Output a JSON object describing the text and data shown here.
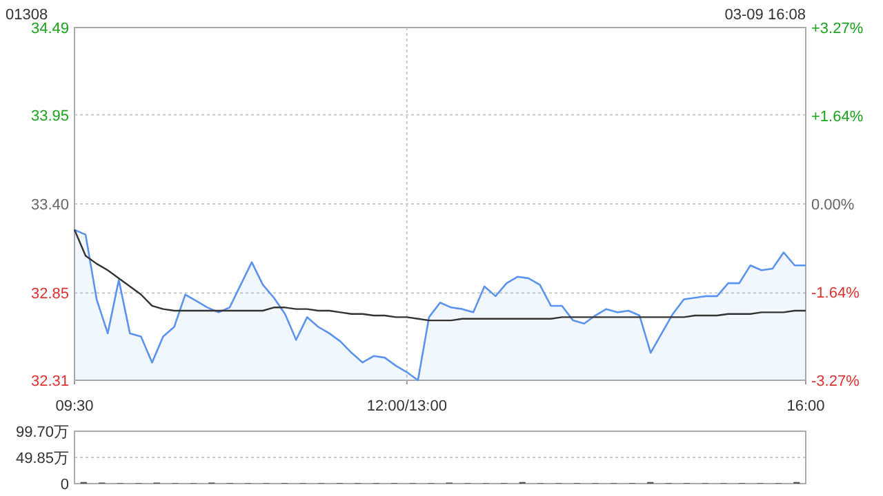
{
  "chart_data": [
    {
      "type": "line",
      "title": "01308",
      "annotations": [
        "03-09 16:08"
      ],
      "categories": [
        "09:30",
        null,
        null,
        null,
        null,
        null,
        null,
        null,
        null,
        null,
        null,
        null,
        null,
        null,
        null,
        null,
        null,
        null,
        null,
        null,
        null,
        null,
        null,
        null,
        null,
        null,
        null,
        null,
        null,
        null,
        "12:00/13:00",
        null,
        null,
        null,
        null,
        null,
        null,
        null,
        null,
        null,
        null,
        null,
        null,
        null,
        null,
        null,
        null,
        null,
        null,
        null,
        null,
        null,
        null,
        null,
        null,
        null,
        null,
        null,
        null,
        null,
        null,
        null,
        null,
        null,
        null,
        null,
        "16:00"
      ],
      "ylim": [
        32.31,
        34.49
      ],
      "yticks": [
        32.31,
        32.85,
        {
          "value": 33.4,
          "label": "33.40"
        },
        33.95,
        34.49
      ],
      "y2lim": [
        -3.27,
        3.27
      ],
      "y2ticks": [
        {
          "value": -3.27,
          "label": "-3.27%"
        },
        {
          "value": -1.64,
          "label": "-1.64%"
        },
        {
          "value": 0,
          "label": "0.00%"
        },
        {
          "value": 1.64,
          "label": "+1.64%"
        },
        {
          "value": 3.27,
          "label": "+3.27%"
        }
      ],
      "grid": true,
      "series": [
        {
          "type": "area",
          "color": "#5b93f0",
          "values": [
            33.24,
            33.21,
            32.81,
            32.6,
            32.93,
            32.6,
            32.58,
            32.42,
            32.58,
            32.64,
            32.84,
            32.8,
            32.76,
            32.73,
            32.76,
            32.9,
            33.04,
            32.9,
            32.82,
            32.72,
            32.56,
            32.7,
            32.64,
            32.6,
            32.55,
            32.48,
            32.42,
            32.46,
            32.45,
            32.4,
            32.36,
            32.31,
            32.7,
            32.79,
            32.76,
            32.75,
            32.73,
            32.89,
            32.83,
            32.91,
            32.95,
            32.94,
            32.9,
            32.77,
            32.77,
            32.68,
            32.66,
            32.71,
            32.75,
            32.73,
            32.74,
            32.71,
            32.48,
            32.6,
            32.72,
            32.81,
            32.82,
            32.83,
            32.83,
            32.91,
            32.91,
            33.02,
            32.99,
            33.0,
            33.1,
            33.02,
            33.02
          ]
        },
        {
          "type": "line",
          "color": "#333333",
          "values": [
            33.24,
            33.08,
            33.03,
            32.99,
            32.94,
            32.89,
            32.84,
            32.77,
            32.75,
            32.74,
            32.74,
            32.74,
            32.74,
            32.74,
            32.74,
            32.74,
            32.74,
            32.74,
            32.76,
            32.76,
            32.75,
            32.75,
            32.74,
            32.74,
            32.73,
            32.72,
            32.72,
            32.71,
            32.71,
            32.7,
            32.7,
            32.69,
            32.68,
            32.68,
            32.68,
            32.69,
            32.69,
            32.69,
            32.69,
            32.69,
            32.69,
            32.69,
            32.69,
            32.69,
            32.7,
            32.7,
            32.7,
            32.7,
            32.7,
            32.7,
            32.7,
            32.7,
            32.7,
            32.7,
            32.7,
            32.7,
            32.71,
            32.71,
            32.71,
            32.72,
            32.72,
            32.72,
            32.73,
            32.73,
            32.73,
            32.74,
            32.74
          ]
        }
      ]
    },
    {
      "type": "bar",
      "color": "#555555",
      "categories": [
        null,
        null,
        null,
        null,
        null,
        null,
        null,
        null,
        null,
        null,
        null,
        null,
        null,
        null,
        null,
        null,
        null,
        null,
        null,
        null,
        null,
        null,
        null,
        null,
        null,
        null,
        null,
        null,
        null,
        null,
        null,
        null,
        null,
        null,
        null,
        null,
        null,
        null,
        null,
        null
      ],
      "values": [
        3,
        2,
        1,
        1,
        2,
        1,
        1,
        2,
        1,
        1,
        1,
        1,
        1,
        1,
        1,
        1,
        1,
        1,
        1,
        1,
        2,
        1,
        1,
        1,
        3,
        1,
        1,
        1,
        1,
        1,
        1,
        3,
        1,
        1,
        1,
        1,
        1,
        1,
        1,
        3
      ],
      "ylim": [
        0,
        99.7
      ],
      "yticks": [
        {
          "value": 0,
          "label": "0"
        },
        {
          "value": 49.85,
          "label": "49.85万"
        },
        {
          "value": 99.7,
          "label": "99.70万"
        }
      ],
      "grid": "y",
      "tick_labels": "y"
    }
  ]
}
